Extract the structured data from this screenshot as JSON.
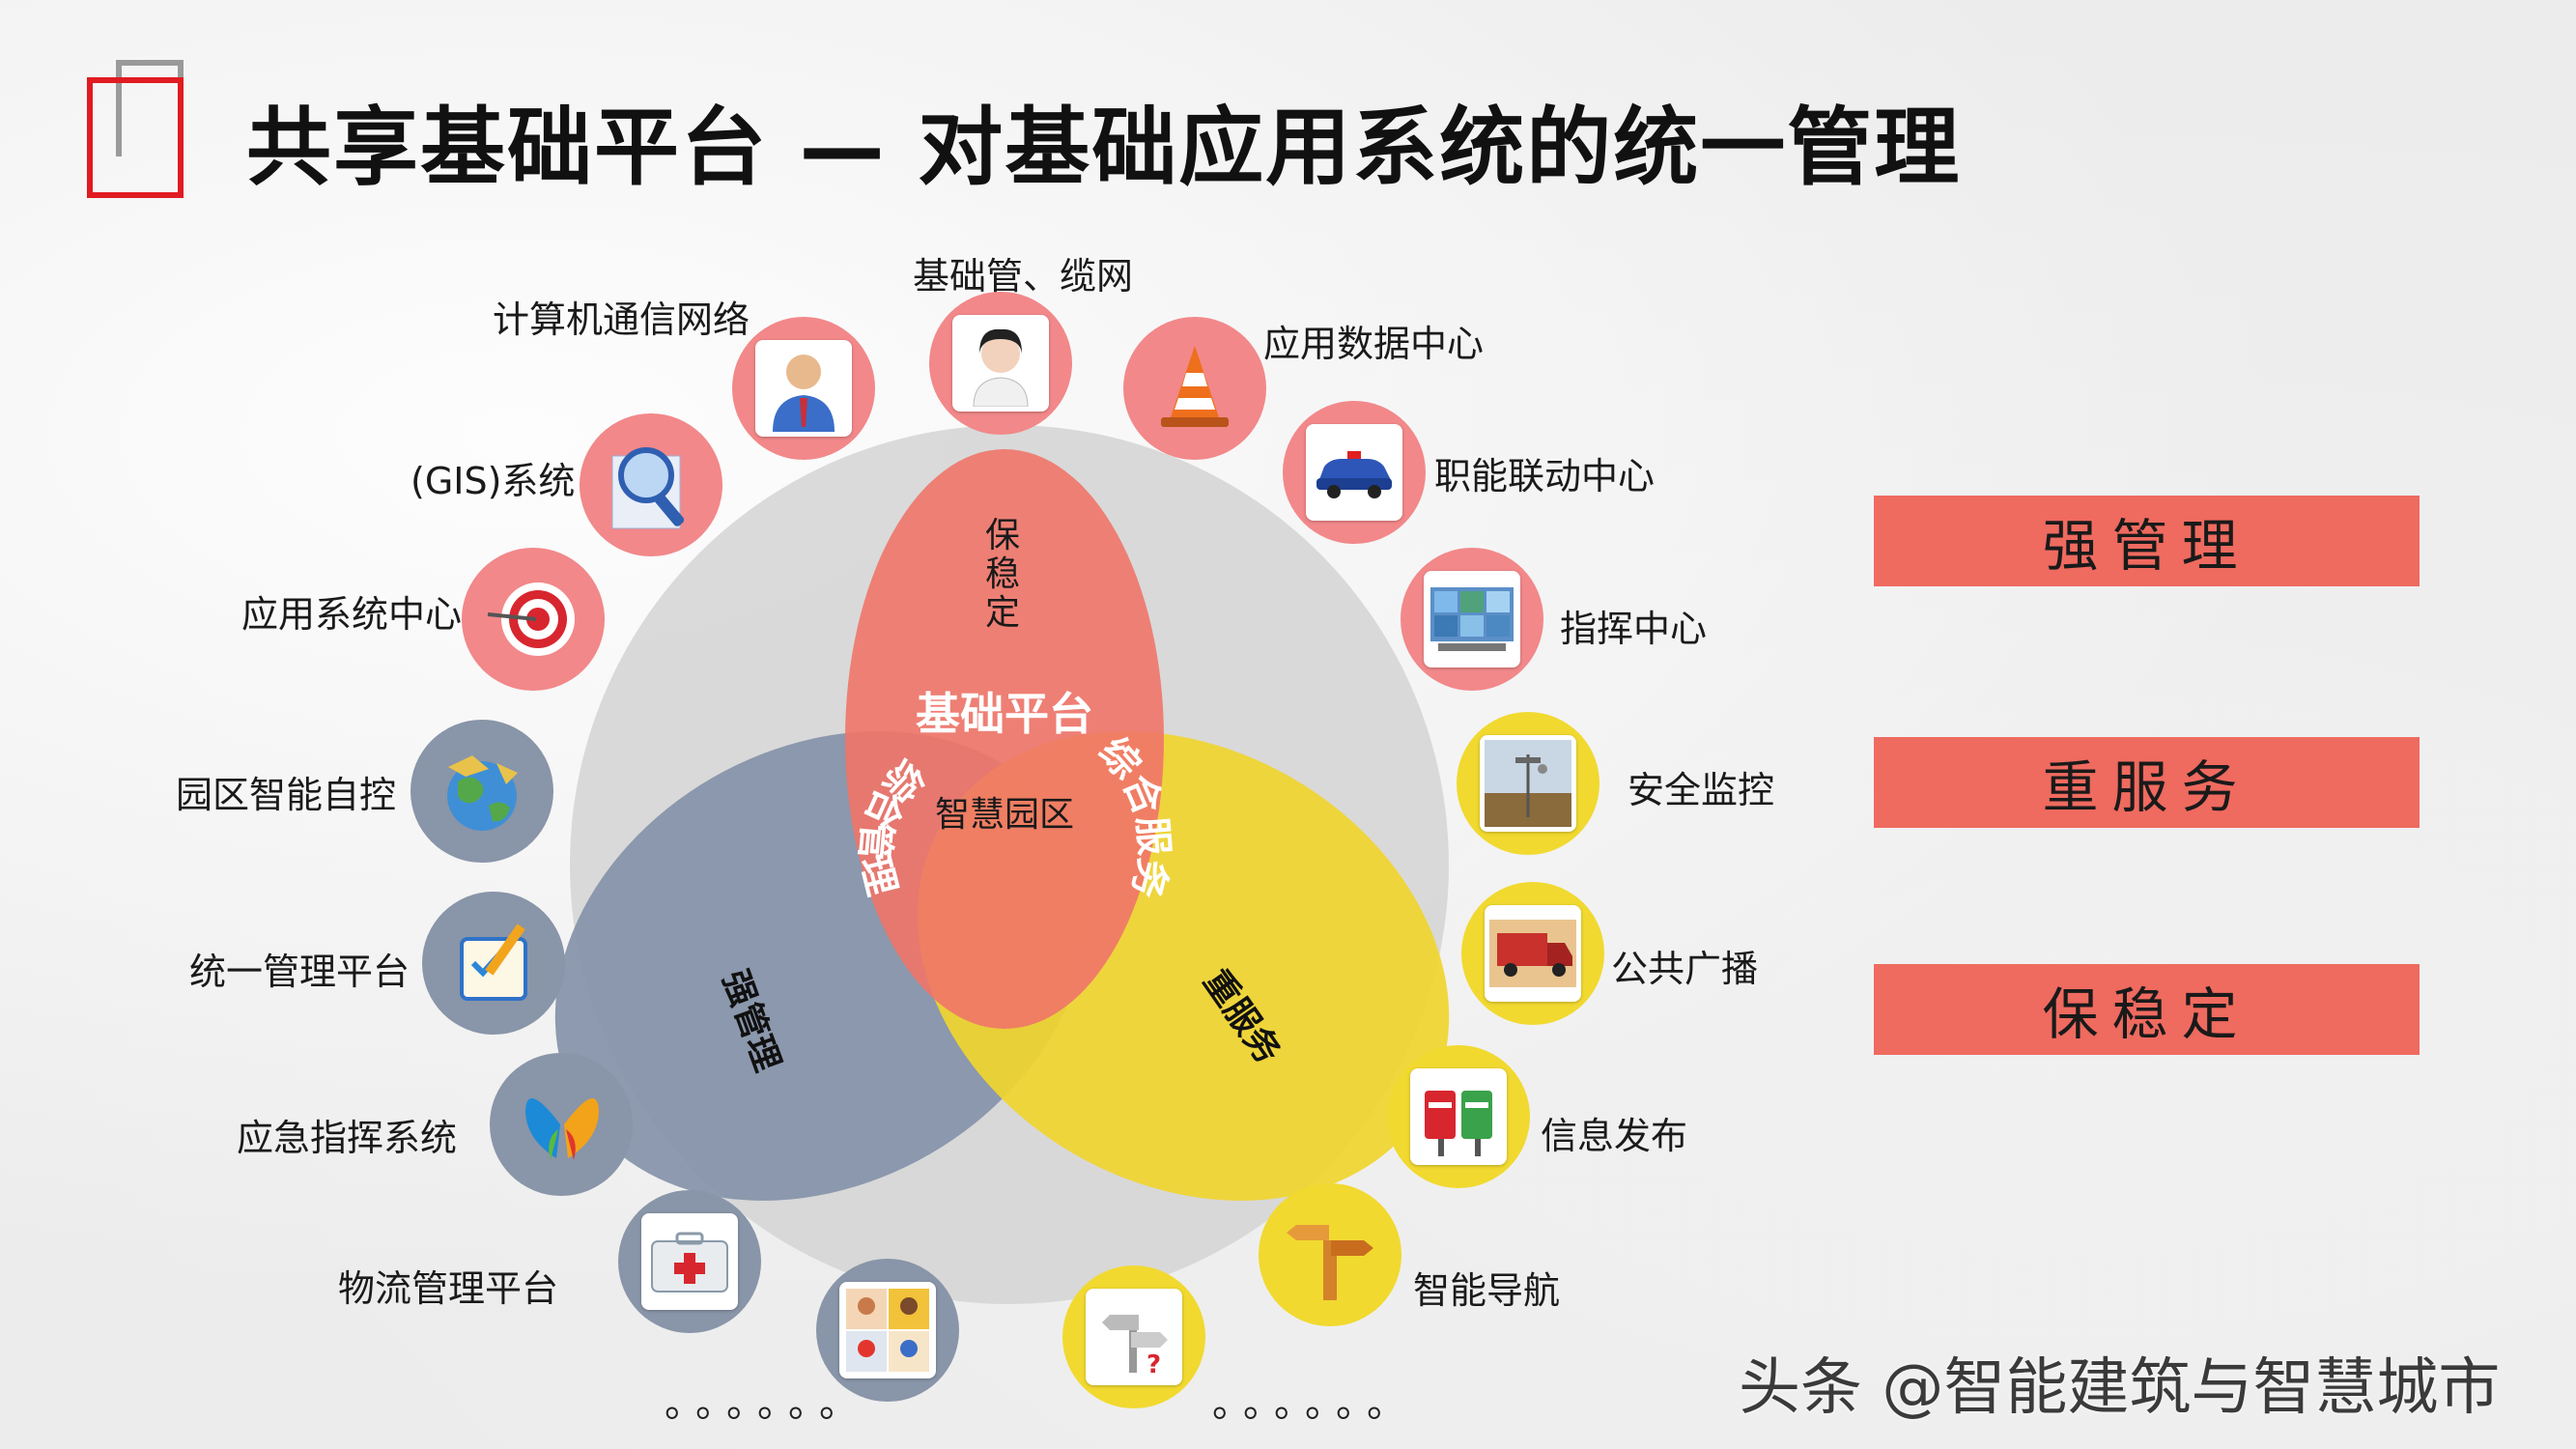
{
  "title": "共享基础平台 — 对基础应用系统的统一管理",
  "venn": {
    "top_circle_label": "基础平台",
    "top_circle_sub": "保稳定",
    "left_circle_label": "强管理",
    "right_circle_label": "重服务",
    "center_label": "智慧园区",
    "arc_left": "综合管理",
    "arc_right": "综合服务"
  },
  "items": [
    {
      "label": "计算机通信网络",
      "icon": "user-icon"
    },
    {
      "label": "基础管、缆网",
      "icon": "person-photo-icon"
    },
    {
      "label": "应用数据中心",
      "icon": "traffic-cone-icon"
    },
    {
      "label": "(GIS)系统",
      "icon": "magnifier-icon"
    },
    {
      "label": "职能联动中心",
      "icon": "police-car-icon"
    },
    {
      "label": "应用系统中心",
      "icon": "target-icon"
    },
    {
      "label": "指挥中心",
      "icon": "video-wall-icon"
    },
    {
      "label": "园区智能自控",
      "icon": "globe-icon"
    },
    {
      "label": "安全监控",
      "icon": "weather-station-icon"
    },
    {
      "label": "统一管理平台",
      "icon": "clipboard-icon"
    },
    {
      "label": "公共广播",
      "icon": "truck-icon"
    },
    {
      "label": "应急指挥系统",
      "icon": "butterfly-icon"
    },
    {
      "label": "信息发布",
      "icon": "mailbox-icon"
    },
    {
      "label": "物流管理平台",
      "icon": "first-aid-icon"
    },
    {
      "label": "智能导航",
      "icon": "signpost-icon"
    },
    {
      "label": "",
      "icon": "people-grid-icon"
    },
    {
      "label": "",
      "icon": "question-sign-icon"
    }
  ],
  "dots_left": "。。。。。。",
  "dots_right": "。。。。。。",
  "tags": [
    "强管理",
    "重服务",
    "保稳定"
  ],
  "watermark": "头条 @智能建筑与智慧城市",
  "colors": {
    "pink": "#f2888a",
    "slate": "#8995a8",
    "yellow": "#f1d930",
    "tag": "#ef6a5f",
    "logo_red": "#e11b22"
  }
}
